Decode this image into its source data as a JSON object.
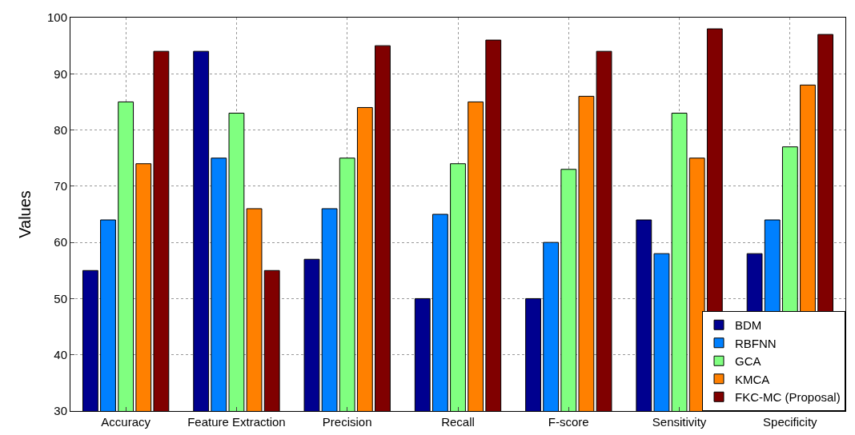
{
  "chart_data": {
    "type": "bar",
    "ylabel": "Values",
    "categories": [
      "Accuracy",
      "Feature Extraction",
      "Precision",
      "Recall",
      "F-score",
      "Sensitivity",
      "Specificity"
    ],
    "series": [
      {
        "name": "BDM",
        "color": "#00008f",
        "values": [
          55,
          94,
          57,
          50,
          50,
          64,
          58
        ]
      },
      {
        "name": "RBFNN",
        "color": "#0080ff",
        "values": [
          64,
          75,
          66,
          65,
          60,
          58,
          64
        ]
      },
      {
        "name": "GCA",
        "color": "#80ff80",
        "values": [
          85,
          83,
          75,
          74,
          73,
          83,
          77
        ]
      },
      {
        "name": "KMCA",
        "color": "#ff8000",
        "values": [
          74,
          66,
          84,
          85,
          86,
          75,
          88
        ]
      },
      {
        "name": "FKC-MC (Proposal)",
        "color": "#800000",
        "values": [
          94,
          55,
          95,
          96,
          94,
          98,
          97
        ]
      }
    ],
    "ylim": [
      30,
      100
    ],
    "yticks": [
      30,
      40,
      50,
      60,
      70,
      80,
      90,
      100
    ],
    "grid": true,
    "legend": "bottom right"
  }
}
